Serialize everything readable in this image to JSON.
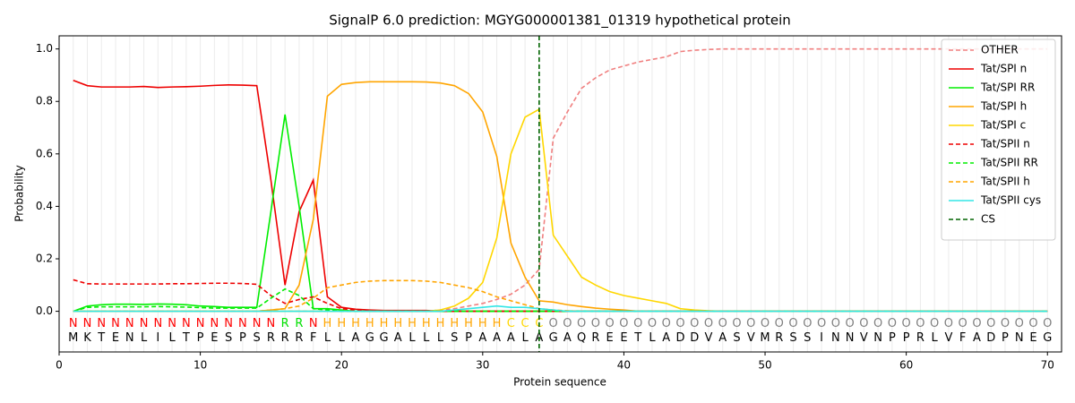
{
  "chart_data": {
    "type": "line",
    "title": "SignalP 6.0 prediction: MGYG000001381_01319 hypothetical protein",
    "x_label": "Protein sequence",
    "y_label": "Probability",
    "xlim": [
      0,
      71
    ],
    "ylim": [
      -0.155,
      1.05
    ],
    "xticks": [
      0,
      10,
      20,
      30,
      40,
      50,
      60,
      70
    ],
    "yticks": [
      {
        "value": 0,
        "label": "0.0"
      },
      {
        "value": 0.2,
        "label": "0.2"
      },
      {
        "value": 0.4,
        "label": "0.4"
      },
      {
        "value": 0.6,
        "label": "0.6"
      },
      {
        "value": 0.8,
        "label": "0.8"
      },
      {
        "value": 1.0,
        "label": "1.0"
      }
    ],
    "legend": "upper right",
    "x": [
      1,
      2,
      3,
      4,
      5,
      6,
      7,
      8,
      9,
      10,
      11,
      12,
      13,
      14,
      15,
      16,
      17,
      18,
      19,
      20,
      21,
      22,
      23,
      24,
      25,
      26,
      27,
      28,
      29,
      30,
      31,
      32,
      33,
      34,
      35,
      36,
      37,
      38,
      39,
      40,
      41,
      42,
      43,
      44,
      45,
      46,
      47,
      48,
      49,
      50,
      51,
      52,
      53,
      54,
      55,
      56,
      57,
      58,
      59,
      60,
      61,
      62,
      63,
      64,
      65,
      66,
      67,
      68,
      69,
      70
    ],
    "sequence": [
      "M",
      "K",
      "T",
      "E",
      "N",
      "L",
      "I",
      "L",
      "T",
      "P",
      "E",
      "S",
      "P",
      "S",
      "R",
      "R",
      "R",
      "F",
      "L",
      "L",
      "A",
      "G",
      "G",
      "A",
      "L",
      "L",
      "L",
      "S",
      "P",
      "A",
      "A",
      "A",
      "L",
      "A",
      "G",
      "A",
      "Q",
      "R",
      "E",
      "E",
      "T",
      "L",
      "A",
      "D",
      "D",
      "V",
      "A",
      "S",
      "V",
      "M",
      "R",
      "S",
      "S",
      "I",
      "N",
      "N",
      "V",
      "N",
      "P",
      "P",
      "R",
      "L",
      "V",
      "F",
      "A",
      "D",
      "P",
      "N",
      "E",
      "G"
    ],
    "labels": [
      "N",
      "N",
      "N",
      "N",
      "N",
      "N",
      "N",
      "N",
      "N",
      "N",
      "N",
      "N",
      "N",
      "N",
      "N",
      "R",
      "R",
      "N",
      "H",
      "H",
      "H",
      "H",
      "H",
      "H",
      "H",
      "H",
      "H",
      "H",
      "H",
      "H",
      "H",
      "C",
      "C",
      "C",
      "O",
      "O",
      "O",
      "O",
      "O",
      "O",
      "O",
      "O",
      "O",
      "O",
      "O",
      "O",
      "O",
      "O",
      "O",
      "O",
      "O",
      "O",
      "O",
      "O",
      "O",
      "O",
      "O",
      "O",
      "O",
      "O",
      "O",
      "O",
      "O",
      "O",
      "O",
      "O",
      "O",
      "O",
      "O",
      "O"
    ],
    "label_colors": {
      "N": "#ff0000",
      "R": "#00e000",
      "H": "#ffa500",
      "C": "#ffd700",
      "O": "#808080"
    },
    "series": [
      {
        "name": "OTHER",
        "color": "#f08080",
        "dash": true,
        "values": [
          0,
          0,
          0,
          0,
          0,
          0,
          0,
          0,
          0,
          0,
          0,
          0,
          0,
          0,
          0,
          0,
          0,
          0,
          0,
          0,
          0,
          0,
          0,
          0,
          0,
          0,
          0.005,
          0.01,
          0.02,
          0.03,
          0.045,
          0.065,
          0.1,
          0.16,
          0.66,
          0.76,
          0.85,
          0.89,
          0.92,
          0.935,
          0.95,
          0.96,
          0.97,
          0.99,
          0.995,
          0.998,
          1,
          1,
          1,
          1,
          1,
          1,
          1,
          1,
          1,
          1,
          1,
          1,
          1,
          1,
          1,
          1,
          1,
          1,
          1,
          1,
          1,
          1,
          1,
          1
        ]
      },
      {
        "name": "Tat/SPI n",
        "color": "#ee0000",
        "dash": false,
        "values": [
          0.88,
          0.86,
          0.855,
          0.855,
          0.855,
          0.857,
          0.853,
          0.855,
          0.856,
          0.858,
          0.861,
          0.863,
          0.862,
          0.86,
          0.5,
          0.1,
          0.38,
          0.5,
          0.055,
          0.015,
          0.008,
          0.005,
          0.003,
          0.003,
          0.003,
          0.003,
          0,
          0,
          0,
          0,
          0,
          0,
          0,
          0,
          0,
          0,
          0,
          0,
          0,
          0,
          0,
          0,
          0,
          0,
          0,
          0,
          0,
          0,
          0,
          0,
          0,
          0,
          0,
          0,
          0,
          0,
          0,
          0,
          0,
          0,
          0,
          0,
          0,
          0,
          0,
          0,
          0,
          0,
          0,
          0
        ]
      },
      {
        "name": "Tat/SPI RR",
        "color": "#00ee00",
        "dash": false,
        "values": [
          0,
          0.02,
          0.025,
          0.027,
          0.027,
          0.026,
          0.028,
          0.027,
          0.025,
          0.02,
          0.018,
          0.015,
          0.015,
          0.015,
          0.38,
          0.75,
          0.4,
          0.01,
          0.01,
          0.005,
          0,
          0,
          0,
          0,
          0,
          0,
          0,
          0,
          0,
          0,
          0,
          0,
          0,
          0,
          0,
          0,
          0,
          0,
          0,
          0,
          0,
          0,
          0,
          0,
          0,
          0,
          0,
          0,
          0,
          0,
          0,
          0,
          0,
          0,
          0,
          0,
          0,
          0,
          0,
          0,
          0,
          0,
          0,
          0,
          0,
          0,
          0,
          0,
          0,
          0
        ]
      },
      {
        "name": "Tat/SPI h",
        "color": "#ffa500",
        "dash": false,
        "values": [
          0,
          0,
          0,
          0,
          0,
          0,
          0,
          0,
          0,
          0,
          0,
          0,
          0,
          0,
          0.005,
          0.01,
          0.1,
          0.35,
          0.82,
          0.865,
          0.872,
          0.875,
          0.875,
          0.875,
          0.875,
          0.874,
          0.87,
          0.86,
          0.83,
          0.76,
          0.59,
          0.26,
          0.13,
          0.04,
          0.035,
          0.025,
          0.018,
          0.012,
          0.008,
          0.005,
          0,
          0,
          0,
          0,
          0,
          0,
          0,
          0,
          0,
          0,
          0,
          0,
          0,
          0,
          0,
          0,
          0,
          0,
          0,
          0,
          0,
          0,
          0,
          0,
          0,
          0,
          0,
          0,
          0,
          0
        ]
      },
      {
        "name": "Tat/SPI c",
        "color": "#ffd700",
        "dash": false,
        "values": [
          0,
          0,
          0,
          0,
          0,
          0,
          0,
          0,
          0,
          0,
          0,
          0,
          0,
          0,
          0,
          0,
          0,
          0,
          0,
          0,
          0,
          0,
          0,
          0,
          0,
          0,
          0.005,
          0.02,
          0.05,
          0.11,
          0.28,
          0.6,
          0.74,
          0.77,
          0.29,
          0.21,
          0.13,
          0.1,
          0.075,
          0.06,
          0.05,
          0.04,
          0.03,
          0.01,
          0.005,
          0.002,
          0,
          0,
          0,
          0,
          0,
          0,
          0,
          0,
          0,
          0,
          0,
          0,
          0,
          0,
          0,
          0,
          0,
          0,
          0,
          0,
          0,
          0,
          0,
          0
        ]
      },
      {
        "name": "Tat/SPII n",
        "color": "#ee0000",
        "dash": true,
        "values": [
          0.12,
          0.105,
          0.104,
          0.104,
          0.104,
          0.104,
          0.104,
          0.105,
          0.105,
          0.106,
          0.107,
          0.107,
          0.106,
          0.103,
          0.06,
          0.03,
          0.045,
          0.055,
          0.03,
          0.01,
          0.005,
          0,
          0,
          0,
          0,
          0,
          0,
          0,
          0,
          0,
          0,
          0,
          0,
          0,
          0,
          0,
          0,
          0,
          0,
          0,
          0,
          0,
          0,
          0,
          0,
          0,
          0,
          0,
          0,
          0,
          0,
          0,
          0,
          0,
          0,
          0,
          0,
          0,
          0,
          0,
          0,
          0,
          0,
          0,
          0,
          0,
          0,
          0,
          0,
          0
        ]
      },
      {
        "name": "Tat/SPII RR",
        "color": "#00ee00",
        "dash": true,
        "values": [
          0,
          0.015,
          0.017,
          0.017,
          0.017,
          0.017,
          0.018,
          0.017,
          0.016,
          0.014,
          0.012,
          0.012,
          0.012,
          0.012,
          0.05,
          0.085,
          0.06,
          0.01,
          0.005,
          0,
          0,
          0,
          0,
          0,
          0,
          0,
          0,
          0,
          0,
          0,
          0,
          0,
          0,
          0,
          0,
          0,
          0,
          0,
          0,
          0,
          0,
          0,
          0,
          0,
          0,
          0,
          0,
          0,
          0,
          0,
          0,
          0,
          0,
          0,
          0,
          0,
          0,
          0,
          0,
          0,
          0,
          0,
          0,
          0,
          0,
          0,
          0,
          0,
          0,
          0
        ]
      },
      {
        "name": "Tat/SPII h",
        "color": "#ffa500",
        "dash": true,
        "values": [
          0,
          0,
          0,
          0,
          0,
          0,
          0,
          0,
          0,
          0,
          0,
          0,
          0,
          0,
          0.005,
          0.01,
          0.02,
          0.05,
          0.09,
          0.1,
          0.11,
          0.115,
          0.117,
          0.117,
          0.117,
          0.115,
          0.11,
          0.1,
          0.09,
          0.075,
          0.055,
          0.04,
          0.025,
          0.01,
          0.005,
          0.002,
          0,
          0,
          0,
          0,
          0,
          0,
          0,
          0,
          0,
          0,
          0,
          0,
          0,
          0,
          0,
          0,
          0,
          0,
          0,
          0,
          0,
          0,
          0,
          0,
          0,
          0,
          0,
          0,
          0,
          0,
          0,
          0,
          0,
          0
        ]
      },
      {
        "name": "Tat/SPII cys",
        "color": "#33e6e6",
        "dash": false,
        "values": [
          0,
          0,
          0,
          0,
          0,
          0,
          0,
          0,
          0,
          0,
          0,
          0,
          0,
          0,
          0,
          0,
          0,
          0,
          0,
          0,
          0,
          0,
          0,
          0,
          0,
          0,
          0,
          0.005,
          0.01,
          0.015,
          0.02,
          0.015,
          0.015,
          0.01,
          0.005,
          0,
          0,
          0,
          0,
          0,
          0,
          0,
          0,
          0,
          0,
          0,
          0,
          0,
          0,
          0,
          0,
          0,
          0,
          0,
          0,
          0,
          0,
          0,
          0,
          0,
          0,
          0,
          0,
          0,
          0,
          0,
          0,
          0,
          0,
          0
        ]
      }
    ],
    "cs": {
      "name": "CS",
      "x": 34,
      "color": "#006400"
    }
  }
}
